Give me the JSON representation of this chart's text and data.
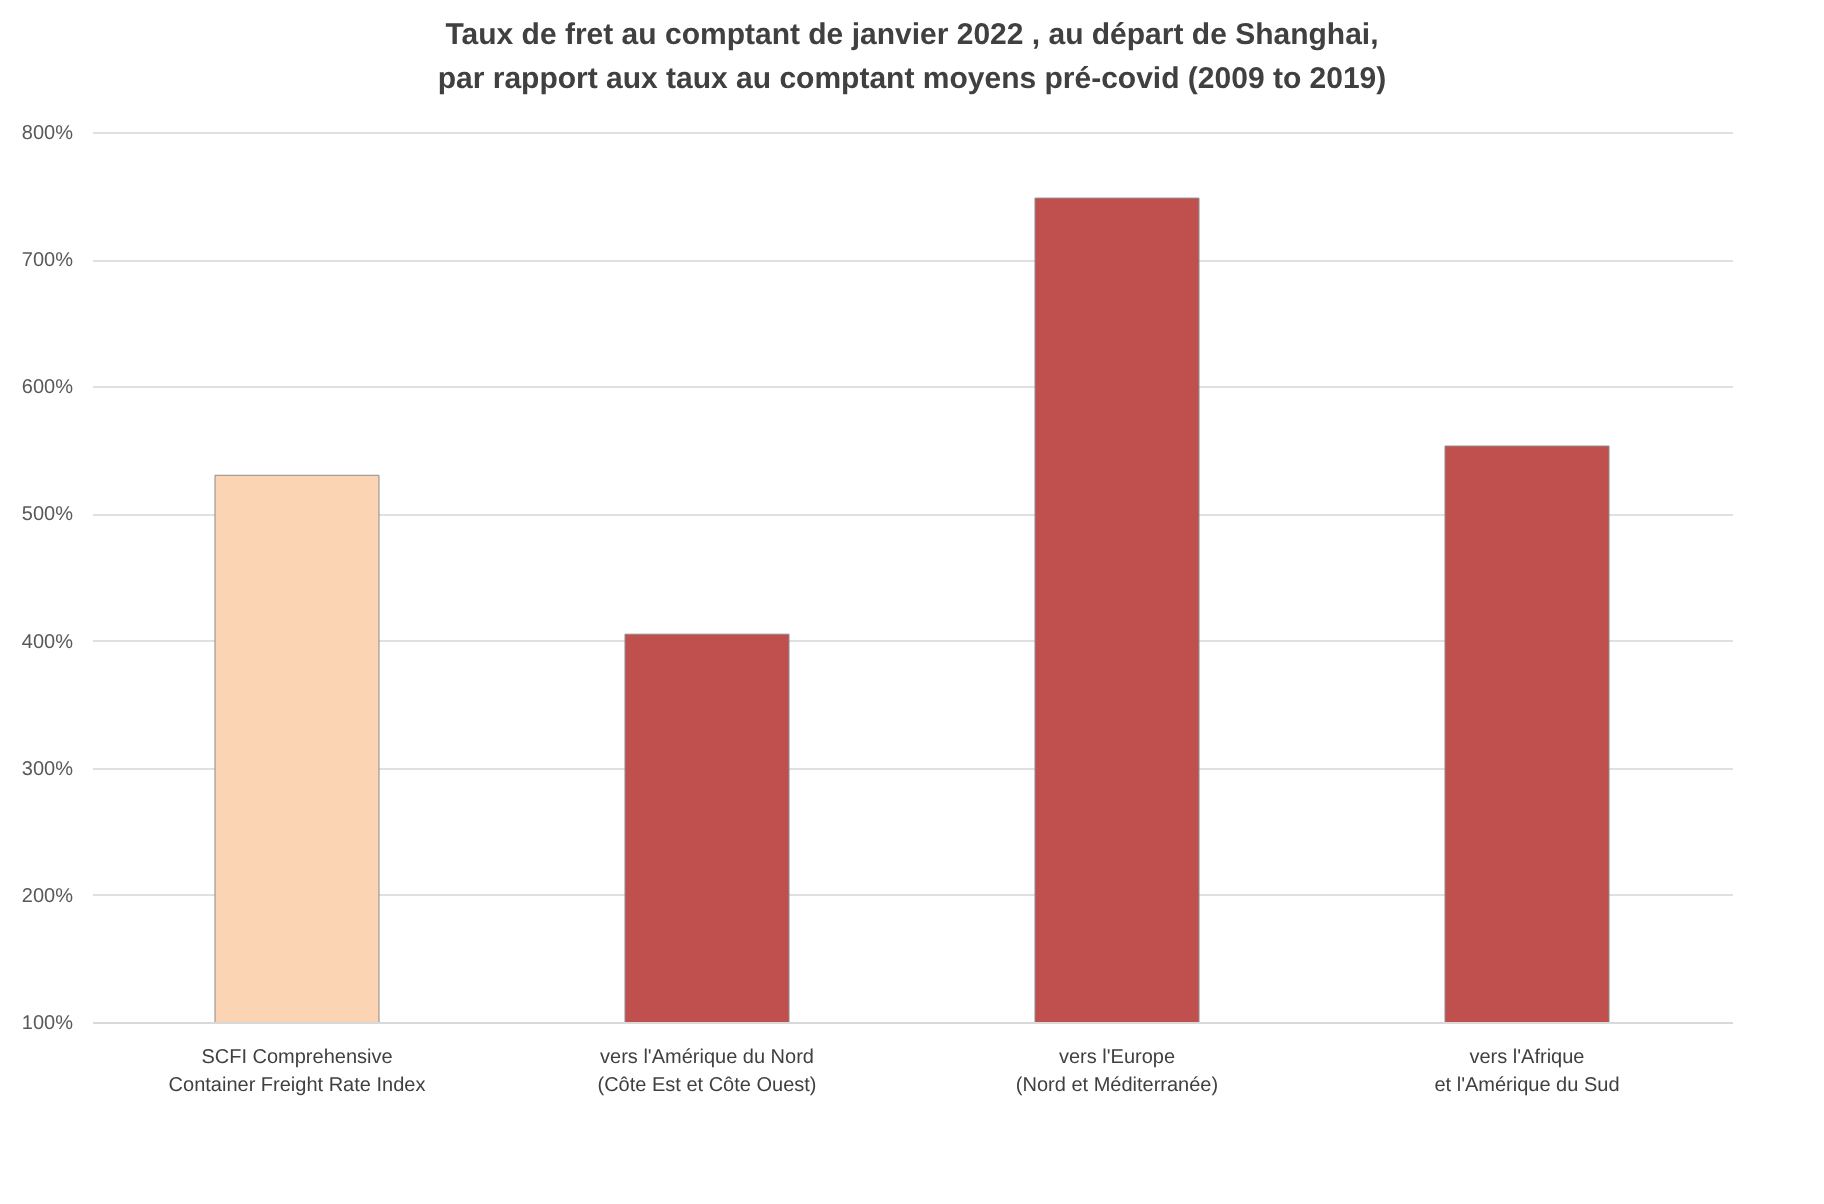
{
  "chart_data": {
    "type": "bar",
    "title": "Taux de fret au comptant de janvier 2022 , au départ de Shanghai,\npar rapport aux taux au comptant moyens pré-covid (2009 to 2019)",
    "categories": [
      "SCFI Comprehensive\nContainer Freight Rate Index",
      "vers l'Amérique du Nord\n(Côte Est et Côte Ouest)",
      "vers l'Europe\n(Nord et Méditerranée)",
      "vers l'Afrique\net l'Amérique du Sud"
    ],
    "values": [
      530,
      405,
      748,
      553
    ],
    "colors": [
      "#fbd4b4",
      "#c0504d",
      "#c0504d",
      "#c0504d"
    ],
    "ylim": [
      100,
      800
    ],
    "yticks": [
      {
        "value": 100,
        "label": "100%"
      },
      {
        "value": 200,
        "label": "200%"
      },
      {
        "value": 300,
        "label": "300%"
      },
      {
        "value": 400,
        "label": "400%"
      },
      {
        "value": 500,
        "label": "500%"
      },
      {
        "value": 600,
        "label": "600%"
      },
      {
        "value": 700,
        "label": "700%"
      },
      {
        "value": 800,
        "label": "800%"
      }
    ],
    "grid": "y"
  }
}
